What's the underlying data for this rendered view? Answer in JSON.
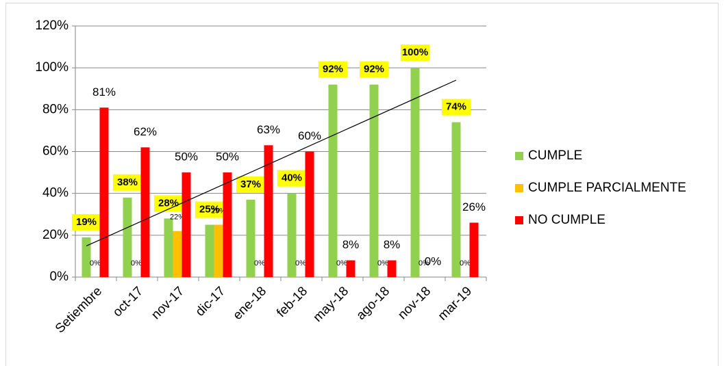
{
  "chart_data": {
    "type": "bar",
    "categories": [
      "Setiembre",
      "oct-17",
      "nov-17",
      "dic-17",
      "ene-18",
      "feb-18",
      "may-18",
      "ago-18",
      "nov-18",
      "mar-19"
    ],
    "series": [
      {
        "name": "CUMPLE",
        "color": "#92d050",
        "values": [
          19,
          38,
          28,
          25,
          37,
          40,
          92,
          92,
          100,
          74
        ],
        "value_labels": [
          "19%",
          "38%",
          "28%",
          "25%",
          "37%",
          "40%",
          "92%",
          "92%",
          "100%",
          "74%"
        ]
      },
      {
        "name": "CUMPLE PARCIALMENTE",
        "color": "#ffc000",
        "values": [
          0,
          0,
          22,
          25,
          0,
          0,
          0,
          0,
          0,
          0
        ],
        "value_labels": [
          "0%",
          "0%",
          "22%",
          "25%",
          "0%",
          "0%",
          "0%",
          "0%",
          "0%",
          "0%"
        ]
      },
      {
        "name": "NO CUMPLE",
        "color": "#ff0000",
        "values": [
          81,
          62,
          50,
          50,
          63,
          60,
          8,
          8,
          0,
          26
        ],
        "value_labels": [
          "81%",
          "62%",
          "50%",
          "50%",
          "63%",
          "60%",
          "8%",
          "8%",
          "0%",
          "26%"
        ]
      }
    ],
    "ylim": [
      0,
      120
    ],
    "yticks": [
      {
        "value": 0,
        "label": "0%"
      },
      {
        "value": 20,
        "label": "20%"
      },
      {
        "value": 40,
        "label": "40%"
      },
      {
        "value": 60,
        "label": "60%"
      },
      {
        "value": 80,
        "label": "80%"
      },
      {
        "value": 100,
        "label": "100%"
      },
      {
        "value": 120,
        "label": "120%"
      }
    ],
    "grid": true,
    "trendline": true,
    "legend": "right"
  }
}
